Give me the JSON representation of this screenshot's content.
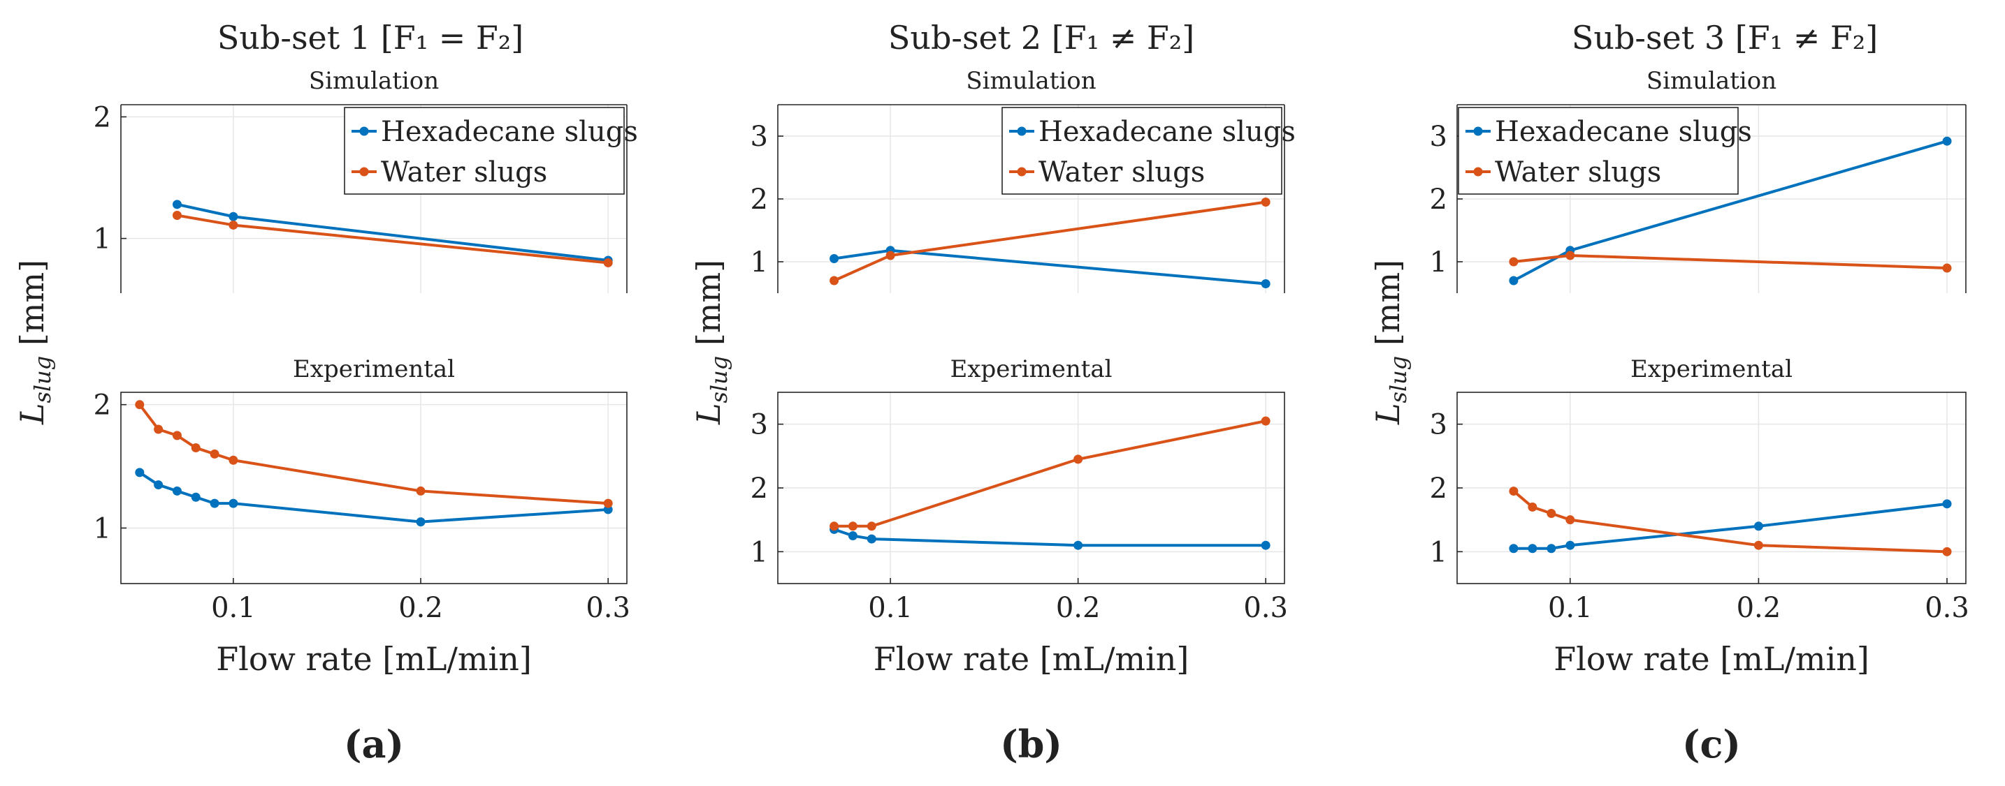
{
  "colors": {
    "hexadecane": "#0072BD",
    "water": "#D95319",
    "grid": "#e6e6e6",
    "axis": "#262626"
  },
  "panels": [
    {
      "title": "Sub-set 1 [F₁ = F₂]",
      "ylabel": "L_slug [mm]",
      "xlabel": "Flow rate [mL/min]",
      "label": "(a)"
    },
    {
      "title": "Sub-set 2 [F₁ ≠ F₂]",
      "ylabel": "L_slug [mm]",
      "xlabel": "Flow rate [mL/min]",
      "label": "(b)"
    },
    {
      "title": "Sub-set 3 [F₁ ≠ F₂]",
      "ylabel": "L_slug [mm]",
      "xlabel": "Flow rate [mL/min]",
      "label": "(c)"
    }
  ],
  "chart_data": [
    {
      "panel": 0,
      "type": "line",
      "title": "Simulation",
      "xlabel": "Flow rate [mL/min]",
      "ylabel": "L_slug [mm]",
      "xlim": [
        0.04,
        0.31
      ],
      "ylim": [
        0.55,
        2.1
      ],
      "xticks": [
        0.1,
        0.2,
        0.3
      ],
      "yticks": [
        1,
        2
      ],
      "show_xticks": false,
      "legend": "top-right",
      "series": [
        {
          "name": "Hexadecane slugs",
          "color": "#0072BD",
          "x": [
            0.07,
            0.1,
            0.3
          ],
          "y": [
            1.28,
            1.18,
            0.82
          ]
        },
        {
          "name": "Water slugs",
          "color": "#D95319",
          "x": [
            0.07,
            0.1,
            0.3
          ],
          "y": [
            1.19,
            1.11,
            0.8
          ]
        }
      ]
    },
    {
      "panel": 0,
      "type": "line",
      "title": "Experimental",
      "xlabel": "Flow rate [mL/min]",
      "ylabel": "L_slug [mm]",
      "xlim": [
        0.04,
        0.31
      ],
      "ylim": [
        0.55,
        2.1
      ],
      "xticks": [
        0.1,
        0.2,
        0.3
      ],
      "yticks": [
        1,
        2
      ],
      "show_xticks": true,
      "legend": "none",
      "series": [
        {
          "name": "Hexadecane slugs",
          "color": "#0072BD",
          "x": [
            0.05,
            0.06,
            0.07,
            0.08,
            0.09,
            0.1,
            0.2,
            0.3
          ],
          "y": [
            1.45,
            1.35,
            1.3,
            1.25,
            1.2,
            1.2,
            1.05,
            1.15
          ]
        },
        {
          "name": "Water slugs",
          "color": "#D95319",
          "x": [
            0.05,
            0.06,
            0.07,
            0.08,
            0.09,
            0.1,
            0.2,
            0.3
          ],
          "y": [
            2.0,
            1.8,
            1.75,
            1.65,
            1.6,
            1.55,
            1.3,
            1.2
          ]
        }
      ]
    },
    {
      "panel": 1,
      "type": "line",
      "title": "Simulation",
      "xlabel": "Flow rate [mL/min]",
      "ylabel": "L_slug [mm]",
      "xlim": [
        0.04,
        0.31
      ],
      "ylim": [
        0.5,
        3.5
      ],
      "xticks": [
        0.1,
        0.2,
        0.3
      ],
      "yticks": [
        1,
        2,
        3
      ],
      "show_xticks": false,
      "legend": "top-right",
      "series": [
        {
          "name": "Hexadecane slugs",
          "color": "#0072BD",
          "x": [
            0.07,
            0.1,
            0.3
          ],
          "y": [
            1.05,
            1.18,
            0.65
          ]
        },
        {
          "name": "Water slugs",
          "color": "#D95319",
          "x": [
            0.07,
            0.1,
            0.3
          ],
          "y": [
            0.7,
            1.1,
            1.95
          ]
        }
      ]
    },
    {
      "panel": 1,
      "type": "line",
      "title": "Experimental",
      "xlabel": "Flow rate [mL/min]",
      "ylabel": "L_slug [mm]",
      "xlim": [
        0.04,
        0.31
      ],
      "ylim": [
        0.5,
        3.5
      ],
      "xticks": [
        0.1,
        0.2,
        0.3
      ],
      "yticks": [
        1,
        2,
        3
      ],
      "show_xticks": true,
      "legend": "none",
      "series": [
        {
          "name": "Hexadecane slugs",
          "color": "#0072BD",
          "x": [
            0.07,
            0.08,
            0.09,
            0.2,
            0.3
          ],
          "y": [
            1.35,
            1.25,
            1.2,
            1.1,
            1.1
          ]
        },
        {
          "name": "Water slugs",
          "color": "#D95319",
          "x": [
            0.07,
            0.08,
            0.09,
            0.2,
            0.3
          ],
          "y": [
            1.4,
            1.4,
            1.4,
            2.45,
            3.05
          ]
        }
      ]
    },
    {
      "panel": 2,
      "type": "line",
      "title": "Simulation",
      "xlabel": "Flow rate [mL/min]",
      "ylabel": "L_slug [mm]",
      "xlim": [
        0.04,
        0.31
      ],
      "ylim": [
        0.5,
        3.5
      ],
      "xticks": [
        0.1,
        0.2,
        0.3
      ],
      "yticks": [
        1,
        2,
        3
      ],
      "show_xticks": false,
      "legend": "top-left",
      "series": [
        {
          "name": "Hexadecane slugs",
          "color": "#0072BD",
          "x": [
            0.07,
            0.1,
            0.3
          ],
          "y": [
            0.7,
            1.18,
            2.92
          ]
        },
        {
          "name": "Water slugs",
          "color": "#D95319",
          "x": [
            0.07,
            0.1,
            0.3
          ],
          "y": [
            1.0,
            1.1,
            0.9
          ]
        }
      ]
    },
    {
      "panel": 2,
      "type": "line",
      "title": "Experimental",
      "xlabel": "Flow rate [mL/min]",
      "ylabel": "L_slug [mm]",
      "xlim": [
        0.04,
        0.31
      ],
      "ylim": [
        0.5,
        3.5
      ],
      "xticks": [
        0.1,
        0.2,
        0.3
      ],
      "yticks": [
        1,
        2,
        3
      ],
      "show_xticks": true,
      "legend": "none",
      "series": [
        {
          "name": "Hexadecane slugs",
          "color": "#0072BD",
          "x": [
            0.07,
            0.08,
            0.09,
            0.1,
            0.2,
            0.3
          ],
          "y": [
            1.05,
            1.05,
            1.05,
            1.1,
            1.4,
            1.75
          ]
        },
        {
          "name": "Water slugs",
          "color": "#D95319",
          "x": [
            0.07,
            0.08,
            0.09,
            0.1,
            0.2,
            0.3
          ],
          "y": [
            1.95,
            1.7,
            1.6,
            1.5,
            1.1,
            1.0
          ]
        }
      ]
    }
  ]
}
